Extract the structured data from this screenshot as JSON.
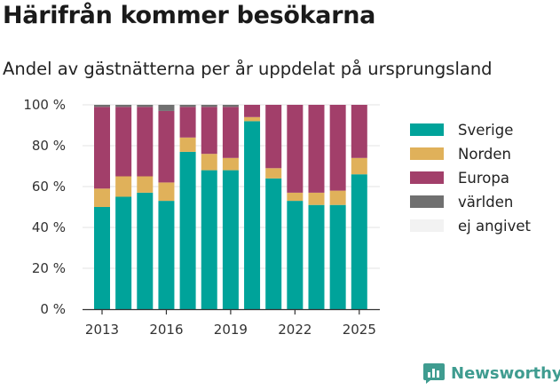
{
  "title": "Härifrån kommer besökarna",
  "subtitle": "Andel av gästnätterna per år uppdelat på ursprungsland",
  "brand": "Newsworthy",
  "colors": {
    "Sverige": "#00a39a",
    "Norden": "#e0b15a",
    "Europa": "#a23f6a",
    "världen": "#707070",
    "ej angivet": "#f2f2f2",
    "grid": "#e3e3e3",
    "axis": "#333333",
    "brand": "#3f9c90"
  },
  "chart_data": {
    "type": "bar",
    "stacked": true,
    "categories": [
      "2013",
      "2014",
      "2015",
      "2016",
      "2017",
      "2018",
      "2019",
      "2020",
      "2021",
      "2022",
      "2023",
      "2024",
      "2025"
    ],
    "x_tick_labels": [
      "2013",
      "2016",
      "2019",
      "2022",
      "2025"
    ],
    "y_tick_labels": [
      "0 %",
      "20 %",
      "40 %",
      "60 %",
      "80 %",
      "100 %"
    ],
    "ylim": [
      0,
      100
    ],
    "legend_position": "right",
    "series": [
      {
        "name": "Sverige",
        "values": [
          50,
          55,
          57,
          53,
          77,
          68,
          68,
          92,
          64,
          53,
          51,
          51,
          66
        ]
      },
      {
        "name": "Norden",
        "values": [
          9,
          10,
          8,
          9,
          7,
          8,
          6,
          2,
          5,
          4,
          6,
          7,
          8
        ]
      },
      {
        "name": "Europa",
        "values": [
          40,
          34,
          34,
          35,
          15,
          23,
          25,
          6,
          31,
          43,
          43,
          42,
          26
        ]
      },
      {
        "name": "världen",
        "values": [
          1,
          1,
          1,
          3,
          1,
          1,
          1,
          0,
          0,
          0,
          0,
          0,
          0
        ]
      },
      {
        "name": "ej angivet",
        "values": [
          0,
          0,
          0,
          0,
          0,
          0,
          0,
          0,
          0,
          0,
          0,
          0,
          0
        ]
      }
    ]
  }
}
